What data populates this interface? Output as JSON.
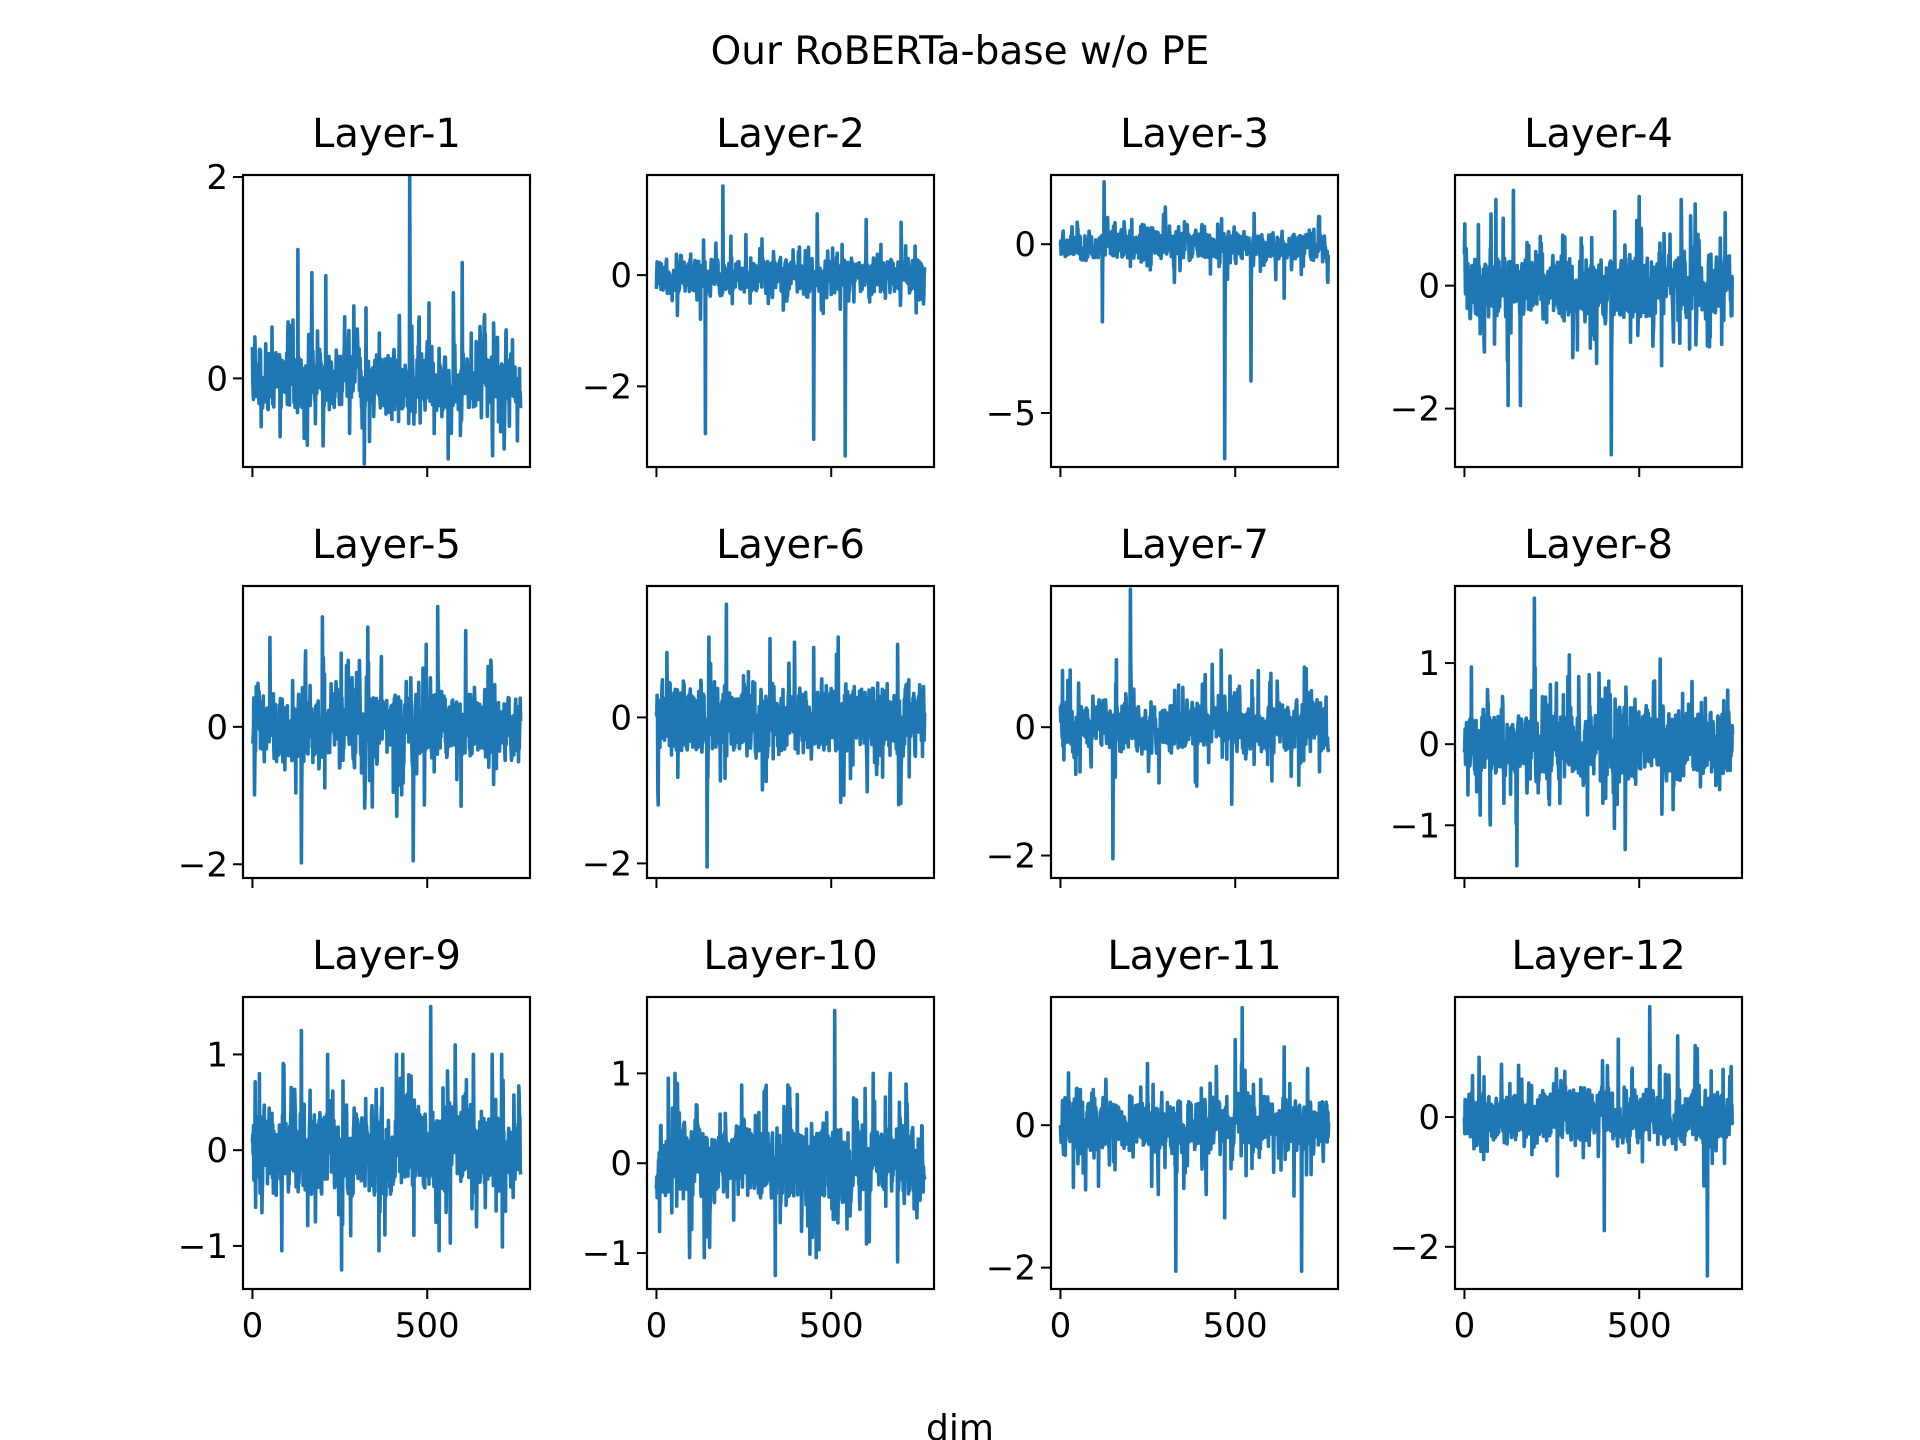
{
  "figure": {
    "title": "Our RoBERTa-base w/o PE",
    "xlabel": "dim"
  },
  "colors": {
    "series": "#1f77b4",
    "axes": "#000000",
    "background": "#ffffff"
  },
  "chart_data": [
    {
      "type": "line",
      "title": "Layer-1",
      "xlabel": "",
      "ylabel": "",
      "xlim": [
        -27,
        794
      ],
      "ylim": [
        -0.88,
        2.02
      ],
      "xticks": [
        0,
        500
      ],
      "yticks": [
        {
          "v": 0,
          "label": "0"
        },
        {
          "v": 2,
          "label": "2"
        }
      ],
      "series": [
        {
          "n": 768,
          "base_min": -0.35,
          "base_max": 0.3,
          "spread": 0.45,
          "min": -0.85,
          "max": 0.72,
          "spikes": [
            [
              130,
              1.28
            ],
            [
              170,
              1.05
            ],
            [
              210,
              1.02
            ],
            [
              290,
              0.72
            ],
            [
              325,
              0.7
            ],
            [
              450,
              2.0
            ],
            [
              505,
              0.75
            ],
            [
              575,
              0.85
            ],
            [
              600,
              1.15
            ],
            [
              690,
              0.55
            ],
            [
              320,
              -0.85
            ],
            [
              560,
              -0.8
            ],
            [
              720,
              -0.7
            ]
          ]
        }
      ]
    },
    {
      "type": "line",
      "title": "Layer-2",
      "xlabel": "",
      "ylabel": "",
      "xlim": [
        -27,
        794
      ],
      "ylim": [
        -3.45,
        1.8
      ],
      "xticks": [
        0,
        500
      ],
      "yticks": [
        {
          "v": -2,
          "label": "−2"
        },
        {
          "v": 0,
          "label": "0"
        }
      ],
      "series": [
        {
          "n": 768,
          "base_min": -0.4,
          "base_max": 0.35,
          "spread": 0.55,
          "min": -0.8,
          "max": 0.95,
          "spikes": [
            [
              140,
              -2.85
            ],
            [
              190,
              1.6
            ],
            [
              450,
              -2.95
            ],
            [
              540,
              -3.25
            ],
            [
              460,
              1.1
            ],
            [
              600,
              1.0
            ],
            [
              700,
              0.95
            ]
          ]
        }
      ]
    },
    {
      "type": "line",
      "title": "Layer-3",
      "xlabel": "",
      "ylabel": "",
      "xlim": [
        -27,
        794
      ],
      "ylim": [
        -6.6,
        2.05
      ],
      "xticks": [
        0,
        500
      ],
      "yticks": [
        {
          "v": -5,
          "label": "−5"
        },
        {
          "v": 0,
          "label": "0"
        }
      ],
      "series": [
        {
          "n": 768,
          "base_min": -0.5,
          "base_max": 0.45,
          "spread": 0.7,
          "min": -2.4,
          "max": 1.85,
          "spikes": [
            [
              125,
              1.85
            ],
            [
              470,
              -6.35
            ],
            [
              545,
              -4.05
            ],
            [
              120,
              -2.3
            ],
            [
              640,
              -1.6
            ],
            [
              300,
              1.1
            ]
          ]
        }
      ]
    },
    {
      "type": "line",
      "title": "Layer-4",
      "xlabel": "",
      "ylabel": "",
      "xlim": [
        -27,
        794
      ],
      "ylim": [
        -2.95,
        1.8
      ],
      "xticks": [
        0,
        500
      ],
      "yticks": [
        {
          "v": -2,
          "label": "−2"
        },
        {
          "v": 0,
          "label": "0"
        }
      ],
      "series": [
        {
          "n": 768,
          "base_min": -0.65,
          "base_max": 0.55,
          "spread": 0.9,
          "min": -2.0,
          "max": 1.55,
          "spikes": [
            [
              90,
              1.4
            ],
            [
              140,
              1.55
            ],
            [
              160,
              1.55
            ],
            [
              420,
              -2.75
            ],
            [
              500,
              1.45
            ],
            [
              125,
              -1.95
            ],
            [
              160,
              -1.95
            ],
            [
              620,
              1.4
            ]
          ]
        }
      ]
    },
    {
      "type": "line",
      "title": "Layer-5",
      "xlabel": "",
      "ylabel": "",
      "xlim": [
        -27,
        794
      ],
      "ylim": [
        -2.2,
        2.05
      ],
      "xticks": [
        0,
        500
      ],
      "yticks": [
        {
          "v": -2,
          "label": "−2"
        },
        {
          "v": 0,
          "label": "0"
        }
      ],
      "series": [
        {
          "n": 768,
          "base_min": -0.6,
          "base_max": 0.6,
          "spread": 0.9,
          "min": -1.3,
          "max": 1.3,
          "spikes": [
            [
              140,
              -1.98
            ],
            [
              200,
              1.6
            ],
            [
              460,
              -1.95
            ],
            [
              530,
              1.75
            ],
            [
              330,
              1.45
            ],
            [
              610,
              1.4
            ],
            [
              50,
              1.3
            ]
          ]
        }
      ]
    },
    {
      "type": "line",
      "title": "Layer-6",
      "xlabel": "",
      "ylabel": "",
      "xlim": [
        -27,
        794
      ],
      "ylim": [
        -2.2,
        1.8
      ],
      "xticks": [
        0,
        500
      ],
      "yticks": [
        {
          "v": -2,
          "label": "−2"
        },
        {
          "v": 0,
          "label": "0"
        }
      ],
      "series": [
        {
          "n": 768,
          "base_min": -0.6,
          "base_max": 0.55,
          "spread": 0.85,
          "min": -1.2,
          "max": 1.15,
          "spikes": [
            [
              145,
              -2.05
            ],
            [
              200,
              1.55
            ],
            [
              150,
              1.1
            ],
            [
              520,
              1.1
            ],
            [
              690,
              1.0
            ]
          ]
        }
      ]
    },
    {
      "type": "line",
      "title": "Layer-7",
      "xlabel": "",
      "ylabel": "",
      "xlim": [
        -27,
        794
      ],
      "ylim": [
        -2.35,
        2.2
      ],
      "xticks": [
        0,
        500
      ],
      "yticks": [
        {
          "v": -2,
          "label": "−2"
        },
        {
          "v": 0,
          "label": "0"
        }
      ],
      "series": [
        {
          "n": 768,
          "base_min": -0.45,
          "base_max": 0.45,
          "spread": 0.7,
          "min": -1.0,
          "max": 1.05,
          "spikes": [
            [
              150,
              -2.05
            ],
            [
              200,
              2.15
            ],
            [
              160,
              1.05
            ],
            [
              460,
              1.2
            ],
            [
              490,
              -1.2
            ]
          ]
        }
      ]
    },
    {
      "type": "line",
      "title": "Layer-8",
      "xlabel": "",
      "ylabel": "",
      "xlim": [
        -27,
        794
      ],
      "ylim": [
        -1.65,
        1.95
      ],
      "xticks": [
        0,
        500
      ],
      "yticks": [
        {
          "v": -1,
          "label": "−1"
        },
        {
          "v": 0,
          "label": "0"
        },
        {
          "v": 1,
          "label": "1"
        }
      ],
      "series": [
        {
          "n": 768,
          "base_min": -0.5,
          "base_max": 0.5,
          "spread": 0.7,
          "min": -1.25,
          "max": 0.95,
          "spikes": [
            [
              150,
              -1.5
            ],
            [
              200,
              1.8
            ],
            [
              460,
              1.45
            ],
            [
              300,
              1.1
            ],
            [
              560,
              1.05
            ],
            [
              460,
              -1.3
            ]
          ]
        }
      ]
    },
    {
      "type": "line",
      "title": "Layer-9",
      "xlabel": "",
      "ylabel": "",
      "xlim": [
        -27,
        794
      ],
      "ylim": [
        -1.45,
        1.6
      ],
      "xticks": [
        0,
        500
      ],
      "yticks": [
        {
          "v": -1,
          "label": "−1"
        },
        {
          "v": 0,
          "label": "0"
        },
        {
          "v": 1,
          "label": "1"
        }
      ],
      "series": [
        {
          "n": 768,
          "base_min": -0.55,
          "base_max": 0.55,
          "spread": 0.85,
          "min": -1.05,
          "max": 1.0,
          "spikes": [
            [
              140,
              1.25
            ],
            [
              255,
              -1.25
            ],
            [
              510,
              1.5
            ],
            [
              580,
              1.1
            ],
            [
              430,
              1.0
            ]
          ]
        }
      ]
    },
    {
      "type": "line",
      "title": "Layer-10",
      "xlabel": "",
      "ylabel": "",
      "xlim": [
        -27,
        794
      ],
      "ylim": [
        -1.4,
        1.85
      ],
      "xticks": [
        0,
        500
      ],
      "yticks": [
        {
          "v": -1,
          "label": "−1"
        },
        {
          "v": 0,
          "label": "0"
        },
        {
          "v": 1,
          "label": "1"
        }
      ],
      "series": [
        {
          "n": 768,
          "base_min": -0.5,
          "base_max": 0.5,
          "spread": 0.75,
          "min": -1.05,
          "max": 1.0,
          "spikes": [
            [
              340,
              -1.25
            ],
            [
              510,
              1.7
            ],
            [
              620,
              1.0
            ],
            [
              690,
              -1.1
            ]
          ]
        }
      ]
    },
    {
      "type": "line",
      "title": "Layer-11",
      "xlabel": "",
      "ylabel": "",
      "xlim": [
        -27,
        794
      ],
      "ylim": [
        -2.3,
        1.8
      ],
      "xticks": [
        0,
        500
      ],
      "yticks": [
        {
          "v": -2,
          "label": "−2"
        },
        {
          "v": 0,
          "label": "0"
        }
      ],
      "series": [
        {
          "n": 768,
          "base_min": -0.45,
          "base_max": 0.45,
          "spread": 0.7,
          "min": -1.0,
          "max": 1.0,
          "spikes": [
            [
              330,
              -2.05
            ],
            [
              690,
              -2.05
            ],
            [
              520,
              1.65
            ],
            [
              500,
              1.2
            ],
            [
              640,
              1.1
            ],
            [
              470,
              -1.3
            ]
          ]
        }
      ]
    },
    {
      "type": "line",
      "title": "Layer-12",
      "xlabel": "",
      "ylabel": "",
      "xlim": [
        -27,
        794
      ],
      "ylim": [
        -2.65,
        1.85
      ],
      "xticks": [
        0,
        500
      ],
      "yticks": [
        {
          "v": -2,
          "label": "−2"
        },
        {
          "v": 0,
          "label": "0"
        }
      ],
      "series": [
        {
          "n": 768,
          "base_min": -0.5,
          "base_max": 0.5,
          "spread": 0.75,
          "min": -1.2,
          "max": 1.1,
          "spikes": [
            [
              695,
              -2.45
            ],
            [
              530,
              1.7
            ],
            [
              400,
              -1.75
            ],
            [
              440,
              1.2
            ],
            [
              610,
              1.25
            ],
            [
              660,
              1.1
            ]
          ]
        }
      ]
    }
  ]
}
